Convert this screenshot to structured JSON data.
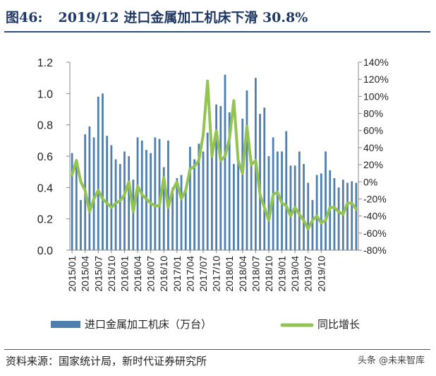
{
  "figure": {
    "label": "图46:",
    "title": "2019/12 进口金属加工机床下滑 30.8%"
  },
  "source": "资料来源：国家统计局，新时代证券研究所",
  "watermark": {
    "text": "头条 @未来智库"
  },
  "colors": {
    "bar": "#4f7fae",
    "line": "#92c353",
    "title": "#1f3864",
    "axis": "#888888"
  },
  "chart_data": {
    "type": "bar+line",
    "title": "2019/12 进口金属加工机床下滑 30.8%",
    "left_axis": {
      "ylim": [
        0,
        1.2
      ],
      "ticks": [
        "0.0",
        "0.2",
        "0.4",
        "0.6",
        "0.8",
        "1.0",
        "1.2"
      ],
      "tick_values": [
        0,
        0.2,
        0.4,
        0.6,
        0.8,
        1.0,
        1.2
      ]
    },
    "right_axis": {
      "ylim": [
        -80,
        140
      ],
      "ticks": [
        "-80%",
        "-60%",
        "-40%",
        "-20%",
        "0%",
        "20%",
        "40%",
        "60%",
        "80%",
        "100%",
        "120%",
        "140%"
      ],
      "tick_values": [
        -80,
        -60,
        -40,
        -20,
        0,
        20,
        40,
        60,
        80,
        100,
        120,
        140
      ]
    },
    "x_tick_labels": [
      "2015/01",
      "2015/04",
      "2015/07",
      "2015/10",
      "2016/01",
      "2016/04",
      "2016/07",
      "2016/10",
      "2017/01",
      "2017/04",
      "2017/07",
      "2017/10",
      "2018/01",
      "2018/04",
      "2018/07",
      "2018/10",
      "2019/01",
      "2019/04",
      "2019/07",
      "2019/10"
    ],
    "legend": [
      "进口金属加工机床（万台）",
      "同比增长"
    ],
    "series": [
      {
        "name": "进口金属加工机床（万台）",
        "axis": "left",
        "type": "bar",
        "values": [
          0.62,
          0.58,
          0.32,
          0.74,
          0.79,
          0.72,
          0.98,
          1.0,
          0.73,
          0.67,
          0.58,
          0.55,
          0.63,
          0.6,
          0.45,
          0.72,
          0.7,
          0.64,
          0.62,
          0.72,
          0.71,
          0.53,
          0.7,
          0.4,
          0.46,
          0.48,
          0.4,
          0.66,
          0.58,
          0.68,
          0.63,
          0.75,
          0.62,
          0.93,
          0.92,
          1.12,
          0.88,
          0.55,
          0.6,
          0.84,
          1.02,
          0.58,
          1.1,
          0.87,
          0.91,
          0.6,
          0.72,
          0.63,
          0.63,
          0.76,
          0.54,
          0.54,
          0.63,
          0.55,
          0.43,
          0.32,
          0.48,
          0.49,
          0.63,
          0.51,
          0.46,
          0.4,
          0.45,
          0.43,
          0.44,
          0.43
        ]
      },
      {
        "name": "同比增长",
        "axis": "right",
        "type": "line",
        "values": [
          8,
          25,
          0,
          -10,
          -35,
          -20,
          -10,
          -20,
          -25,
          -30,
          -25,
          -22,
          -15,
          0,
          -35,
          -5,
          -15,
          -20,
          -25,
          -28,
          -28,
          5,
          -30,
          -10,
          0,
          -20,
          -10,
          15,
          18,
          25,
          55,
          118,
          30,
          60,
          25,
          30,
          50,
          95,
          25,
          10,
          65,
          20,
          25,
          -15,
          -30,
          -45,
          -15,
          -12,
          -25,
          -28,
          -40,
          -30,
          -38,
          -45,
          -55,
          -45,
          -40,
          -48,
          -45,
          -30,
          -30,
          -35,
          -38,
          -25,
          -25,
          -32
        ]
      }
    ]
  }
}
